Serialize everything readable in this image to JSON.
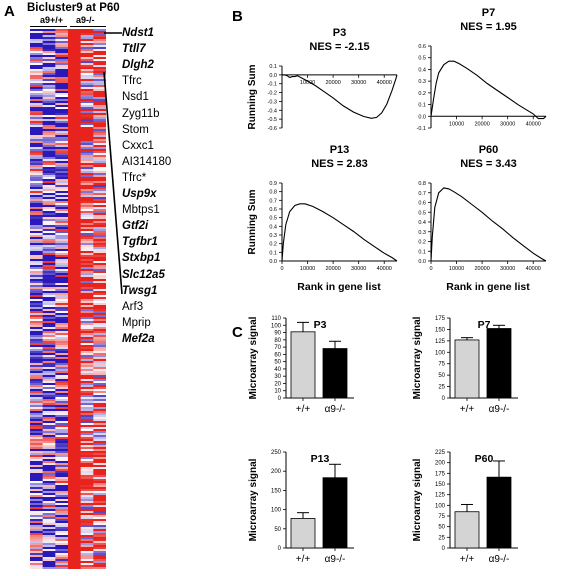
{
  "panels": {
    "a": "A",
    "b": "B",
    "c": "C"
  },
  "heatmap": {
    "title": "Bicluster9 at P60",
    "genotype_wt": "a9+/+",
    "genotype_ko": "a9-/-",
    "genes": [
      {
        "name": "Ndst1",
        "bold": true
      },
      {
        "name": "Ttll7",
        "bold": true
      },
      {
        "name": "Dlgh2",
        "bold": true
      },
      {
        "name": "Tfrc",
        "bold": false
      },
      {
        "name": "Nsd1",
        "bold": false
      },
      {
        "name": "Zyg11b",
        "bold": false
      },
      {
        "name": "Stom",
        "bold": false
      },
      {
        "name": "Cxxc1",
        "bold": false
      },
      {
        "name": "AI314180",
        "bold": false
      },
      {
        "name": "Tfrc*",
        "bold": false
      },
      {
        "name": "Usp9x",
        "bold": true
      },
      {
        "name": "Mbtps1",
        "bold": false
      },
      {
        "name": "Gtf2i",
        "bold": true
      },
      {
        "name": "Tgfbr1",
        "bold": true
      },
      {
        "name": "Stxbp1",
        "bold": true
      },
      {
        "name": "Slc12a5",
        "bold": true
      },
      {
        "name": "Twsg1",
        "bold": true
      },
      {
        "name": "Arf3",
        "bold": false
      },
      {
        "name": "Mprip",
        "bold": false
      },
      {
        "name": "Mef2a",
        "bold": true
      }
    ]
  },
  "colors": {
    "high": "#e8231e",
    "low": "#2a18b8",
    "mid": "#ffffff",
    "wt_bar": "#d4d4d4",
    "ko_bar": "#000000"
  },
  "chart_data": [
    {
      "type": "line",
      "panel": "B",
      "title": "P3",
      "subtitle": "NES = -2.15",
      "xlabel": "",
      "ylabel": "Running Sum",
      "xlim": [
        0,
        45000
      ],
      "ylim": [
        -0.6,
        0.1
      ],
      "xticks": [
        10000,
        20000,
        30000,
        40000
      ],
      "xtick_labels": [
        "10000",
        "20000",
        "30000",
        "40000"
      ],
      "yticks": [
        0.1,
        0.0,
        -0.1,
        -0.2,
        -0.3,
        -0.4,
        -0.5,
        -0.6
      ],
      "ytick_labels": [
        "0.1",
        "0.0",
        "-0.1",
        "-0.2",
        "-0.3",
        "-0.4",
        "-0.5",
        "-0.6"
      ],
      "x": [
        0,
        1000,
        2000,
        3000,
        4000,
        5000,
        6000,
        8000,
        10000,
        13000,
        16000,
        20000,
        24000,
        28000,
        32000,
        35000,
        37000,
        39000,
        41000,
        43000,
        44500,
        45000
      ],
      "y": [
        0,
        0.0,
        -0.01,
        -0.03,
        -0.02,
        -0.02,
        -0.01,
        -0.04,
        -0.07,
        -0.12,
        -0.18,
        -0.26,
        -0.35,
        -0.42,
        -0.47,
        -0.49,
        -0.48,
        -0.43,
        -0.33,
        -0.18,
        -0.05,
        0
      ]
    },
    {
      "type": "line",
      "panel": "B",
      "title": "P7",
      "subtitle": "NES = 1.95",
      "xlabel": "",
      "ylabel": "",
      "xlim": [
        0,
        45000
      ],
      "ylim": [
        -0.1,
        0.6
      ],
      "xticks": [
        10000,
        20000,
        30000,
        40000
      ],
      "xtick_labels": [
        "10000",
        "20000",
        "30000",
        "40000"
      ],
      "yticks": [
        0.6,
        0.5,
        0.4,
        0.3,
        0.2,
        0.1,
        0.0,
        -0.1
      ],
      "ytick_labels": [
        "0.6",
        "0.5",
        "0.4",
        "0.3",
        "0.2",
        "0.1",
        "0.0",
        "-0.1"
      ],
      "x": [
        0,
        1000,
        2000,
        3000,
        5000,
        7000,
        9000,
        11000,
        14000,
        18000,
        22000,
        26000,
        30000,
        34000,
        37000,
        40000,
        42000,
        44000,
        45000
      ],
      "y": [
        0,
        0.15,
        0.28,
        0.37,
        0.44,
        0.47,
        0.47,
        0.45,
        0.41,
        0.35,
        0.28,
        0.22,
        0.16,
        0.1,
        0.06,
        0.02,
        -0.02,
        -0.02,
        0
      ]
    },
    {
      "type": "line",
      "panel": "B",
      "title": "P13",
      "subtitle": "NES = 2.83",
      "xlabel": "",
      "ylabel": "Running Sum",
      "xlim": [
        0,
        45000
      ],
      "ylim": [
        0,
        0.9
      ],
      "xticks": [
        0,
        10000,
        20000,
        30000,
        40000
      ],
      "xtick_labels": [
        "0",
        "10000",
        "20000",
        "30000",
        "40000"
      ],
      "yticks": [
        0.9,
        0.8,
        0.7,
        0.6,
        0.5,
        0.4,
        0.3,
        0.2,
        0.1,
        0.0
      ],
      "ytick_labels": [
        "0.9",
        "0.8",
        "0.7",
        "0.6",
        "0.5",
        "0.4",
        "0.3",
        "0.2",
        "0.1",
        "0.0"
      ],
      "x": [
        0,
        500,
        1500,
        3000,
        5000,
        7000,
        9000,
        12000,
        16000,
        20000,
        24000,
        28000,
        32000,
        36000,
        40000,
        43000,
        45000
      ],
      "y": [
        0,
        0.2,
        0.42,
        0.57,
        0.64,
        0.66,
        0.66,
        0.63,
        0.57,
        0.5,
        0.42,
        0.34,
        0.25,
        0.17,
        0.09,
        0.04,
        0
      ]
    },
    {
      "type": "line",
      "panel": "B",
      "title": "P60",
      "subtitle": "NES = 3.43",
      "xlabel": "",
      "ylabel": "",
      "xlim": [
        0,
        45000
      ],
      "ylim": [
        0,
        0.8
      ],
      "xticks": [
        0,
        10000,
        20000,
        30000,
        40000
      ],
      "xtick_labels": [
        "0",
        "10000",
        "20000",
        "30000",
        "40000"
      ],
      "yticks": [
        0.8,
        0.7,
        0.6,
        0.5,
        0.4,
        0.3,
        0.2,
        0.1,
        0.0
      ],
      "ytick_labels": [
        "0.8",
        "0.7",
        "0.6",
        "0.5",
        "0.4",
        "0.3",
        "0.2",
        "0.1",
        "0.0"
      ],
      "x": [
        0,
        500,
        1500,
        3000,
        5000,
        7000,
        9000,
        12000,
        16000,
        20000,
        24000,
        28000,
        32000,
        36000,
        40000,
        43000,
        45000
      ],
      "y": [
        0,
        0.25,
        0.55,
        0.7,
        0.75,
        0.74,
        0.71,
        0.66,
        0.58,
        0.5,
        0.41,
        0.33,
        0.24,
        0.16,
        0.08,
        0.03,
        0
      ]
    },
    {
      "type": "bar",
      "panel": "C",
      "title": "P3",
      "ylabel": "Microarray signal",
      "categories": [
        "+/+",
        "α9-/-"
      ],
      "values": [
        91,
        68
      ],
      "errors": [
        13,
        10
      ],
      "ylim": [
        0,
        110
      ],
      "yticks": [
        0,
        10,
        20,
        30,
        40,
        50,
        60,
        70,
        80,
        90,
        100,
        110
      ],
      "ytick_labels": [
        "0",
        "10",
        "20",
        "30",
        "40",
        "50",
        "60",
        "70",
        "80",
        "90",
        "100",
        "110"
      ]
    },
    {
      "type": "bar",
      "panel": "C",
      "title": "P7",
      "ylabel": "Microarray signal",
      "categories": [
        "+/+",
        "α9-/-"
      ],
      "values": [
        127,
        152
      ],
      "errors": [
        5,
        7
      ],
      "ylim": [
        0,
        175
      ],
      "yticks": [
        0,
        25,
        50,
        75,
        100,
        125,
        150,
        175
      ],
      "ytick_labels": [
        "0",
        "25",
        "50",
        "75",
        "100",
        "125",
        "150",
        "175"
      ]
    },
    {
      "type": "bar",
      "panel": "C",
      "title": "P13",
      "ylabel": "Microarray signal",
      "categories": [
        "+/+",
        "α9-/-"
      ],
      "values": [
        77,
        183
      ],
      "errors": [
        15,
        35
      ],
      "ylim": [
        0,
        250
      ],
      "yticks": [
        0,
        50,
        100,
        150,
        200,
        250
      ],
      "ytick_labels": [
        "0",
        "50",
        "100",
        "150",
        "200",
        "250"
      ]
    },
    {
      "type": "bar",
      "panel": "C",
      "title": "P60",
      "ylabel": "Microarray signal",
      "categories": [
        "+/+",
        "α9-/-"
      ],
      "values": [
        85,
        166
      ],
      "errors": [
        17,
        38
      ],
      "ylim": [
        0,
        225
      ],
      "yticks": [
        0,
        25,
        50,
        75,
        100,
        125,
        150,
        175,
        200,
        225
      ],
      "ytick_labels": [
        "0",
        "25",
        "50",
        "75",
        "100",
        "125",
        "150",
        "175",
        "200",
        "225"
      ]
    }
  ],
  "gsea_xlabel": "Rank in gene list"
}
